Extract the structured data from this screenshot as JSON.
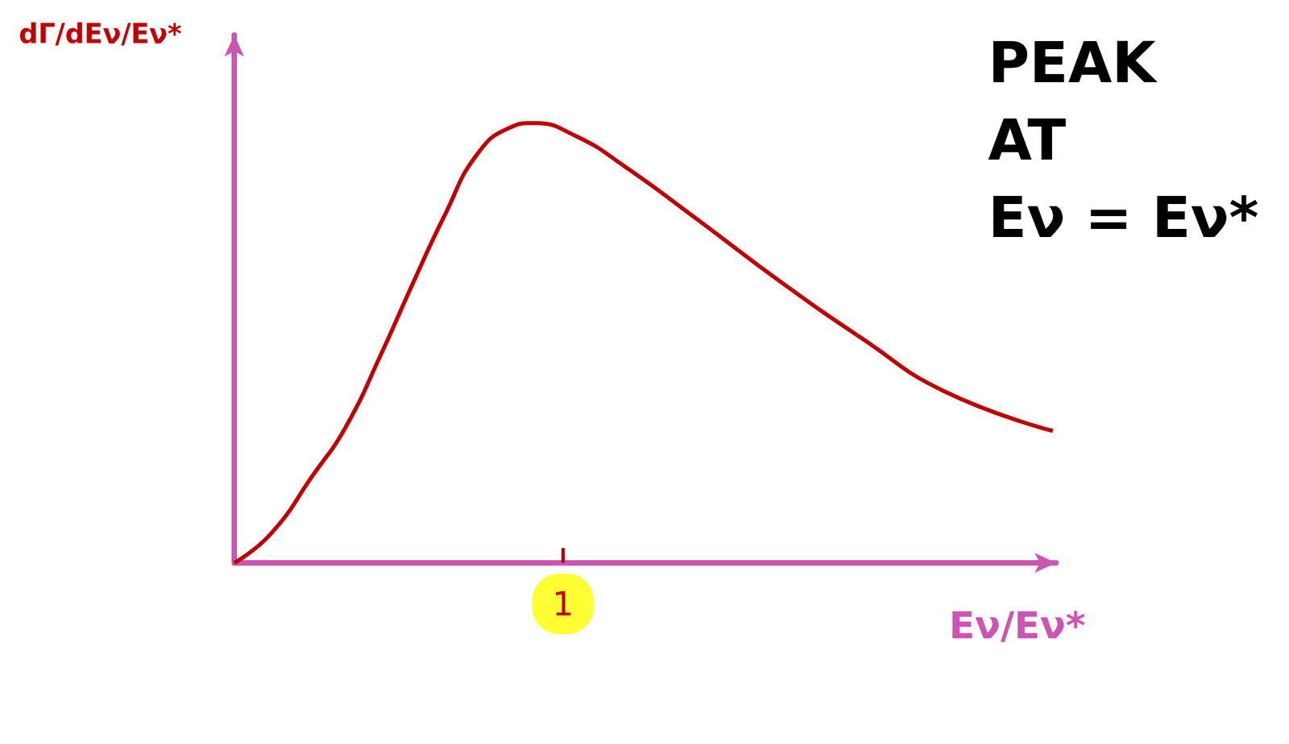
{
  "chart_data": {
    "type": "line",
    "y_label": "dΓ/dEν/Eν*",
    "x_label": "Eν/Eν*",
    "annotation": "PEAK AT Eν = Eν*",
    "x": [
      0,
      0.11,
      0.24,
      0.34,
      0.45,
      0.54,
      0.64,
      0.74,
      0.84,
      0.91,
      1.04,
      1.19,
      1.41,
      1.66,
      1.91,
      2.16,
      2.49
    ],
    "values": [
      0,
      0.065,
      0.2,
      0.31,
      0.48,
      0.63,
      0.79,
      0.93,
      0.99,
      1.0,
      0.97,
      0.9,
      0.78,
      0.64,
      0.51,
      0.39,
      0.3
    ],
    "color": "#c00000",
    "xlim": [
      0,
      2.5
    ],
    "ylim": [
      0,
      1.2
    ],
    "xticks": [
      1
    ],
    "tick_labels": "x",
    "grid": false
  }
}
